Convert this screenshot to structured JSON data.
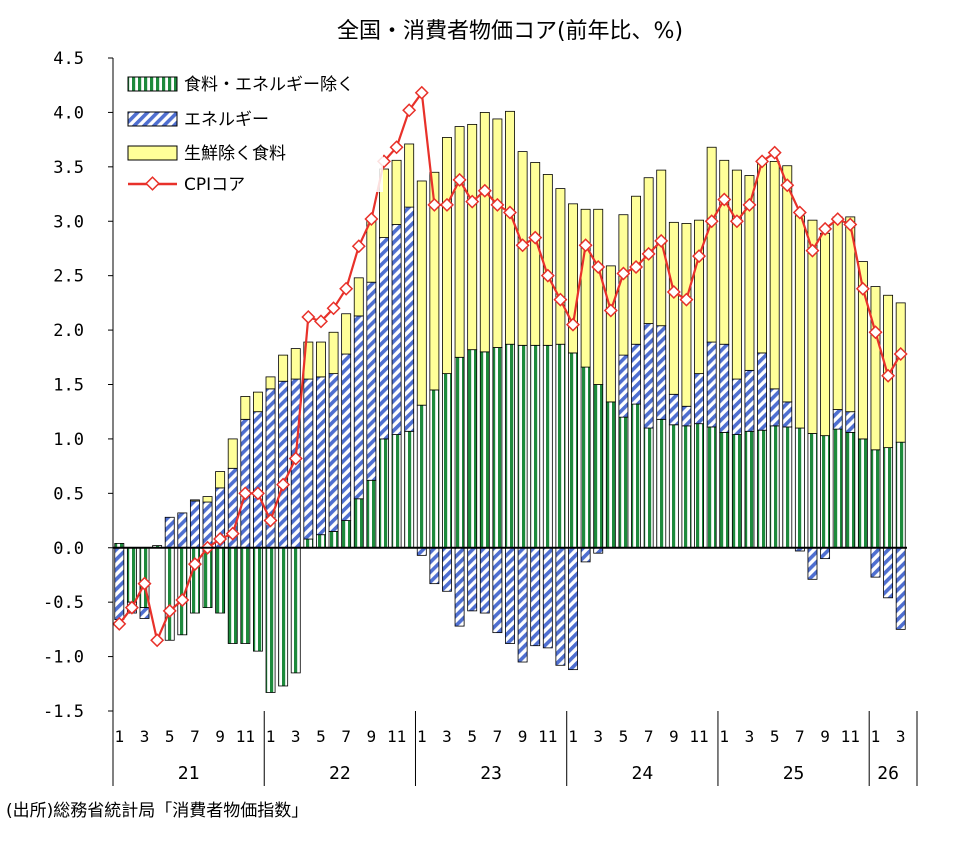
{
  "chart_data": {
    "type": "bar",
    "title": "全国・消費者物価コア(前年比、%)",
    "ylabel": "",
    "xlabel": "",
    "ylim": [
      -1.5,
      4.5
    ],
    "yticks": [
      "4.5",
      "4.0",
      "3.5",
      "3.0",
      "2.5",
      "2.0",
      "1.5",
      "1.0",
      "0.5",
      "0.0",
      "-0.5",
      "-1.0",
      "-1.5"
    ],
    "ytick_values": [
      4.5,
      4.0,
      3.5,
      3.0,
      2.5,
      2.0,
      1.5,
      1.0,
      0.5,
      0.0,
      -0.5,
      -1.0,
      -1.5
    ],
    "month_tick_labels": [
      "1",
      "3",
      "5",
      "7",
      "9",
      "11",
      "1",
      "3",
      "5",
      "7",
      "9",
      "11",
      "1",
      "3",
      "5",
      "7",
      "9",
      "11",
      "1",
      "3",
      "5",
      "7",
      "9",
      "11",
      "1",
      "3",
      "5",
      "7",
      "9",
      "11",
      "1",
      "3"
    ],
    "month_tick_index": [
      0,
      2,
      4,
      6,
      8,
      10,
      12,
      14,
      16,
      18,
      20,
      22,
      24,
      26,
      28,
      30,
      32,
      34,
      36,
      38,
      40,
      42,
      44,
      46,
      48,
      50,
      52,
      54,
      56,
      58,
      60,
      62
    ],
    "years": [
      "21",
      "22",
      "23",
      "24",
      "25",
      "26"
    ],
    "year_start_index": [
      0,
      12,
      24,
      36,
      48,
      60
    ],
    "year_month_count": [
      12,
      12,
      12,
      12,
      12,
      3
    ],
    "categories": [
      "21-01",
      "21-02",
      "21-03",
      "21-04",
      "21-05",
      "21-06",
      "21-07",
      "21-08",
      "21-09",
      "21-10",
      "21-11",
      "21-12",
      "22-01",
      "22-02",
      "22-03",
      "22-04",
      "22-05",
      "22-06",
      "22-07",
      "22-08",
      "22-09",
      "22-10",
      "22-11",
      "22-12",
      "23-01",
      "23-02",
      "23-03",
      "23-04",
      "23-05",
      "23-06",
      "23-07",
      "23-08",
      "23-09",
      "23-10",
      "23-11",
      "23-12",
      "24-01",
      "24-02",
      "24-03",
      "24-04",
      "24-05",
      "24-06",
      "24-07",
      "24-08",
      "24-09",
      "24-10",
      "24-11",
      "24-12",
      "25-01",
      "25-02",
      "25-03",
      "25-04",
      "25-05",
      "25-06",
      "25-07",
      "25-08",
      "25-09",
      "25-10",
      "25-11",
      "25-12",
      "26-01",
      "26-02",
      "26-03"
    ],
    "series": [
      {
        "name": "食料・エネルギー除く",
        "type": "bar",
        "color": "#1e8a3c",
        "values": [
          0.04,
          -0.5,
          -0.55,
          0.02,
          -0.85,
          -0.8,
          -0.6,
          -0.55,
          -0.6,
          -0.88,
          -0.88,
          -0.95,
          -1.33,
          -1.27,
          -1.15,
          0.08,
          0.12,
          0.15,
          0.25,
          0.45,
          0.62,
          1.0,
          1.04,
          1.07,
          1.31,
          1.45,
          1.6,
          1.75,
          1.82,
          1.8,
          1.84,
          1.87,
          1.86,
          1.86,
          1.86,
          1.87,
          1.79,
          1.66,
          1.5,
          1.34,
          1.2,
          1.32,
          1.1,
          1.18,
          1.13,
          1.12,
          1.14,
          1.11,
          1.06,
          1.04,
          1.07,
          1.08,
          1.12,
          1.11,
          1.1,
          1.05,
          1.03,
          1.09,
          1.06,
          1.0,
          0.9,
          0.92,
          0.97
        ]
      },
      {
        "name": "エネルギー",
        "type": "bar",
        "color": "#4f6fd0",
        "values": [
          -0.66,
          -0.1,
          -0.1,
          0.0,
          0.28,
          0.32,
          0.43,
          0.42,
          0.55,
          0.73,
          1.18,
          1.25,
          1.46,
          1.53,
          1.55,
          1.47,
          1.45,
          1.45,
          1.53,
          1.68,
          1.82,
          1.85,
          1.93,
          2.06,
          -0.07,
          -0.33,
          -0.4,
          -0.72,
          -0.58,
          -0.6,
          -0.78,
          -0.88,
          -1.05,
          -0.9,
          -0.92,
          -1.08,
          -1.12,
          -0.13,
          -0.05,
          0.0,
          0.57,
          0.55,
          0.96,
          0.86,
          0.28,
          0.18,
          0.46,
          0.78,
          0.81,
          0.51,
          0.56,
          0.71,
          0.34,
          0.23,
          -0.03,
          -0.29,
          -0.1,
          0.18,
          0.19,
          0.0,
          -0.27,
          -0.46,
          -0.75
        ]
      },
      {
        "name": "生鮮除く食料",
        "type": "bar",
        "color": "#ffff99",
        "values": [
          0.0,
          0.0,
          0.0,
          0.0,
          0.0,
          0.0,
          0.01,
          0.05,
          0.15,
          0.27,
          0.21,
          0.18,
          0.11,
          0.24,
          0.28,
          0.34,
          0.32,
          0.38,
          0.37,
          0.35,
          0.59,
          0.63,
          0.59,
          0.58,
          2.06,
          2.0,
          2.17,
          2.12,
          2.07,
          2.2,
          2.1,
          2.14,
          1.78,
          1.68,
          1.57,
          1.43,
          1.37,
          1.45,
          1.61,
          1.25,
          1.29,
          1.36,
          1.34,
          1.43,
          1.58,
          1.68,
          1.41,
          1.79,
          1.69,
          1.92,
          1.79,
          1.74,
          2.09,
          2.17,
          1.95,
          1.96,
          1.86,
          1.77,
          1.79,
          1.63,
          1.5,
          1.4,
          1.28
        ]
      },
      {
        "name": "CPIコア",
        "type": "line",
        "color": "#e8312a",
        "values": [
          -0.7,
          -0.55,
          -0.33,
          -0.85,
          -0.58,
          -0.48,
          -0.15,
          0.0,
          0.08,
          0.13,
          0.5,
          0.5,
          0.25,
          0.58,
          0.82,
          2.12,
          2.08,
          2.2,
          2.38,
          2.77,
          3.02,
          3.55,
          3.68,
          4.02,
          4.18,
          3.15,
          3.15,
          3.38,
          3.18,
          3.28,
          3.15,
          3.08,
          2.78,
          2.85,
          2.5,
          2.28,
          2.05,
          2.78,
          2.58,
          2.18,
          2.52,
          2.58,
          2.7,
          2.82,
          2.35,
          2.28,
          2.68,
          3.0,
          3.2,
          3.0,
          3.15,
          3.55,
          3.63,
          3.33,
          3.08,
          2.73,
          2.93,
          3.02,
          2.97,
          2.38,
          1.98,
          1.58,
          1.78
        ]
      }
    ],
    "legend_position": "top-left"
  },
  "source_note": "(出所)総務省統計局「消費者物価指数」"
}
